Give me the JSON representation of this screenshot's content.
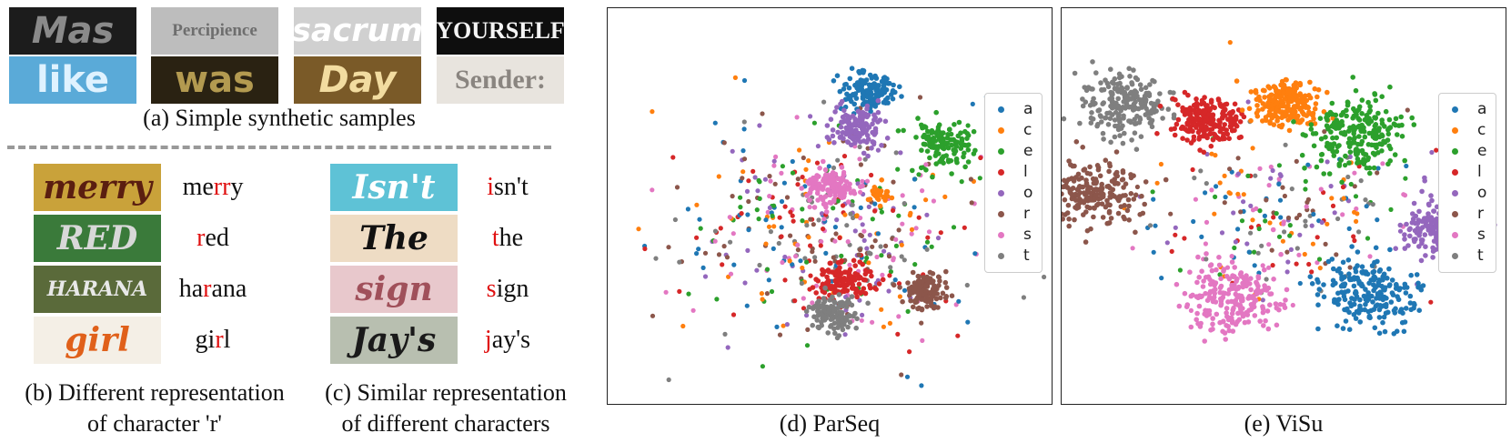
{
  "panel_a": {
    "caption": "(a) Simple synthetic samples",
    "samples": [
      {
        "text": "Mas",
        "bg": "#1c1c1c",
        "fg": "#8a8a8a",
        "font": "sans"
      },
      {
        "text": "Percipience",
        "bg": "#bdbdbd",
        "fg": "#6e6e6e",
        "font": "serif"
      },
      {
        "text": "sacrum",
        "bg": "#d0d0d0",
        "fg": "#ffffff",
        "font": "sans"
      },
      {
        "text": "YOURSELF",
        "bg": "#0e0e0e",
        "fg": "#f4f4f4",
        "font": "serif"
      },
      {
        "text": "like",
        "bg": "#5aaad8",
        "fg": "#dff2ff",
        "font": "sans"
      },
      {
        "text": "was",
        "bg": "#2a2212",
        "fg": "#b39a50",
        "font": "sans"
      },
      {
        "text": "Day",
        "bg": "#7a5a28",
        "fg": "#f2dca0",
        "font": "sans"
      },
      {
        "text": "Sender:",
        "bg": "#e8e4de",
        "fg": "#8a8580",
        "font": "serif"
      }
    ]
  },
  "panel_b": {
    "caption_line1": "(b) Different representation",
    "caption_line2": "of character 'r'",
    "rows": [
      {
        "image_text": "merry",
        "bg": "#c9a23a",
        "fg": "#5a1e10",
        "pre": "me",
        "hl": "rr",
        "post": "y"
      },
      {
        "image_text": "RED",
        "bg": "#3a7a3a",
        "fg": "#d8d8d8",
        "pre": "",
        "hl": "r",
        "post": "ed"
      },
      {
        "image_text": "HARANA",
        "bg": "#5a6a3a",
        "fg": "#e8e8e8",
        "pre": "ha",
        "hl": "r",
        "post": "ana"
      },
      {
        "image_text": "girl",
        "bg": "#f4efe6",
        "fg": "#e0601a",
        "pre": "gi",
        "hl": "r",
        "post": "l"
      }
    ]
  },
  "panel_c": {
    "caption_line1": "(c) Similar representation",
    "caption_line2": "of different characters",
    "rows": [
      {
        "image_text": "Isn't",
        "bg": "#5ec2d6",
        "fg": "#ffffff",
        "pre": "",
        "hl": "i",
        "post": "sn't"
      },
      {
        "image_text": "The",
        "bg": "#eedcc4",
        "fg": "#111111",
        "pre": "",
        "hl": "t",
        "post": "he"
      },
      {
        "image_text": "sign",
        "bg": "#e8c8cc",
        "fg": "#a0505a",
        "pre": "",
        "hl": "s",
        "post": "ign"
      },
      {
        "image_text": "Jay's",
        "bg": "#b8bfb0",
        "fg": "#1a1a1a",
        "pre": "",
        "hl": "j",
        "post": "ay's"
      }
    ]
  },
  "panel_d": {
    "caption": "(d) ParSeq"
  },
  "panel_e": {
    "caption": "(e) ViSu"
  },
  "legend": {
    "entries": [
      {
        "label": "a",
        "color": "#1f77b4"
      },
      {
        "label": "c",
        "color": "#ff7f0e"
      },
      {
        "label": "e",
        "color": "#2ca02c"
      },
      {
        "label": "l",
        "color": "#d62728"
      },
      {
        "label": "o",
        "color": "#9467bd"
      },
      {
        "label": "r",
        "color": "#8c564b"
      },
      {
        "label": "s",
        "color": "#e377c2"
      },
      {
        "label": "t",
        "color": "#7f7f7f"
      }
    ]
  },
  "chart_data": [
    {
      "type": "scatter",
      "title": "(d) ParSeq",
      "legend_position": "right",
      "axes_visible": false,
      "clusters": [
        {
          "name": "a",
          "shape": "tight",
          "center": [
            0.58,
            0.21
          ],
          "spread": 0.025
        },
        {
          "name": "o",
          "shape": "tight",
          "center": [
            0.56,
            0.3
          ],
          "spread": 0.025
        },
        {
          "name": "e",
          "shape": "tight",
          "center": [
            0.75,
            0.34
          ],
          "spread": 0.028
        },
        {
          "name": "s",
          "shape": "tight",
          "center": [
            0.5,
            0.45
          ],
          "spread": 0.022
        },
        {
          "name": "c",
          "shape": "small",
          "center": [
            0.61,
            0.47
          ],
          "spread": 0.012
        },
        {
          "name": "l",
          "shape": "tight",
          "center": [
            0.53,
            0.69
          ],
          "spread": 0.025
        },
        {
          "name": "r",
          "shape": "tight",
          "center": [
            0.71,
            0.71
          ],
          "spread": 0.022
        },
        {
          "name": "t",
          "shape": "tight",
          "center": [
            0.51,
            0.77
          ],
          "spread": 0.022
        }
      ],
      "background_scatter": "dense mixed points across center"
    },
    {
      "type": "scatter",
      "title": "(e) ViSu",
      "legend_position": "right",
      "axes_visible": false,
      "clusters": [
        {
          "name": "t",
          "shape": "tight",
          "center": [
            0.14,
            0.24
          ],
          "spread": 0.04
        },
        {
          "name": "l",
          "shape": "tight",
          "center": [
            0.32,
            0.28
          ],
          "spread": 0.03
        },
        {
          "name": "c",
          "shape": "tight",
          "center": [
            0.5,
            0.24
          ],
          "spread": 0.03
        },
        {
          "name": "e",
          "shape": "tight",
          "center": [
            0.66,
            0.31
          ],
          "spread": 0.045
        },
        {
          "name": "r",
          "shape": "tight",
          "center": [
            0.07,
            0.47
          ],
          "spread": 0.04
        },
        {
          "name": "o",
          "shape": "tight",
          "center": [
            0.85,
            0.55
          ],
          "spread": 0.035
        },
        {
          "name": "s",
          "shape": "tight",
          "center": [
            0.38,
            0.73
          ],
          "spread": 0.045
        },
        {
          "name": "a",
          "shape": "tight",
          "center": [
            0.69,
            0.72
          ],
          "spread": 0.045
        }
      ],
      "background_scatter": "sparse mixed points in center band"
    }
  ]
}
